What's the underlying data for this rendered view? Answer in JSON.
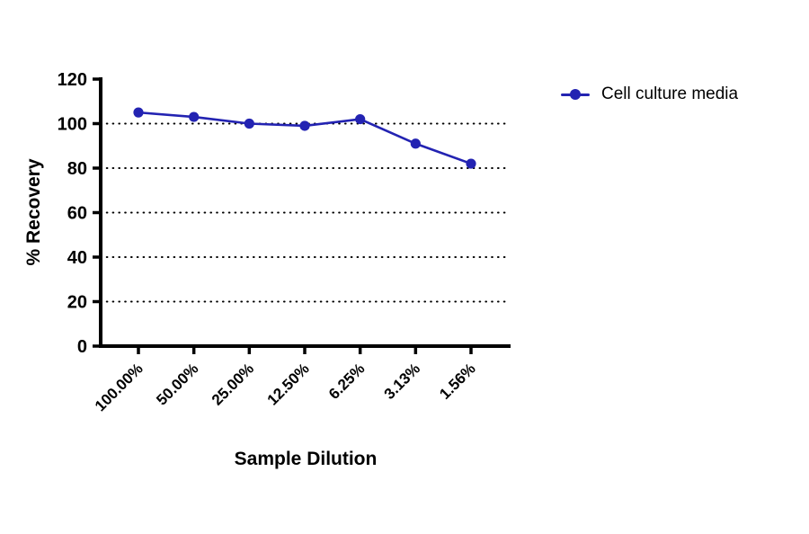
{
  "figure": {
    "background": "#ffffff",
    "text_color": "#000000",
    "axis_color": "#000000"
  },
  "chart_data": {
    "type": "line",
    "title": "",
    "xlabel": "Sample Dilution",
    "ylabel": "% Recovery",
    "categories": [
      "100.00%",
      "50.00%",
      "25.00%",
      "12.50%",
      "6.25%",
      "3.13%",
      "1.56%"
    ],
    "series": [
      {
        "name": "Cell culture media",
        "color": "#2323b2",
        "marker": "circle",
        "values": [
          105,
          103,
          100,
          99,
          102,
          91,
          82
        ]
      }
    ],
    "ylim": [
      0,
      120
    ],
    "yticks": [
      0,
      20,
      40,
      60,
      80,
      100,
      120
    ],
    "gridlines": {
      "style": "dotted",
      "y_values": [
        20,
        40,
        60,
        80,
        100
      ]
    },
    "legend_position": "top-right",
    "legend_items": [
      {
        "label": "Cell culture media",
        "color": "#2323b2",
        "marker": "circle-on-line"
      }
    ]
  }
}
